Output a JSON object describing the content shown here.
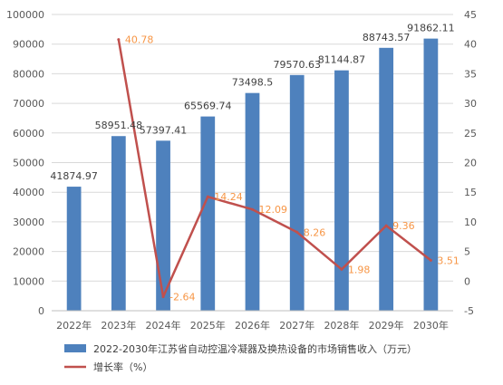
{
  "chart_data": {
    "type": "bar+line",
    "categories": [
      "2022年",
      "2023年",
      "2024年",
      "2025年",
      "2026年",
      "2027年",
      "2028年",
      "2029年",
      "2030年"
    ],
    "series": [
      {
        "name": "2022-2030年江苏省自动控温冷凝器及换热设备的市场销售收入（万元）",
        "type": "bar",
        "axis": "left",
        "color": "#4e81bd",
        "values": [
          41874.97,
          58951.48,
          57397.41,
          65569.74,
          73498.5,
          79570.63,
          81144.87,
          88743.57,
          91862.11
        ],
        "labels": [
          "41874.97",
          "58951.48",
          "57397.41",
          "65569.74",
          "73498.5",
          "79570.63",
          "81144.87",
          "88743.57",
          "91862.11"
        ]
      },
      {
        "name": "增长率（%）",
        "type": "line",
        "axis": "right",
        "color": "#c0504d",
        "label_color": "#f79646",
        "values": [
          null,
          40.78,
          -2.64,
          14.24,
          12.09,
          8.26,
          1.98,
          9.36,
          3.51
        ],
        "labels": [
          "",
          "40.78",
          "-2.64",
          "14.24",
          "12.09",
          "8.26",
          "1.98",
          "9.36",
          "3.51"
        ]
      }
    ],
    "y_left": {
      "min": 0,
      "max": 100000,
      "step": 10000,
      "ticks": [
        "0",
        "10000",
        "20000",
        "30000",
        "40000",
        "50000",
        "60000",
        "70000",
        "80000",
        "90000",
        "100000"
      ]
    },
    "y_right": {
      "min": -5,
      "max": 45,
      "step": 5,
      "ticks": [
        "-5",
        "0",
        "5",
        "10",
        "15",
        "20",
        "25",
        "30",
        "35",
        "40",
        "45"
      ]
    },
    "grid": true,
    "legend_position": "bottom-left"
  }
}
